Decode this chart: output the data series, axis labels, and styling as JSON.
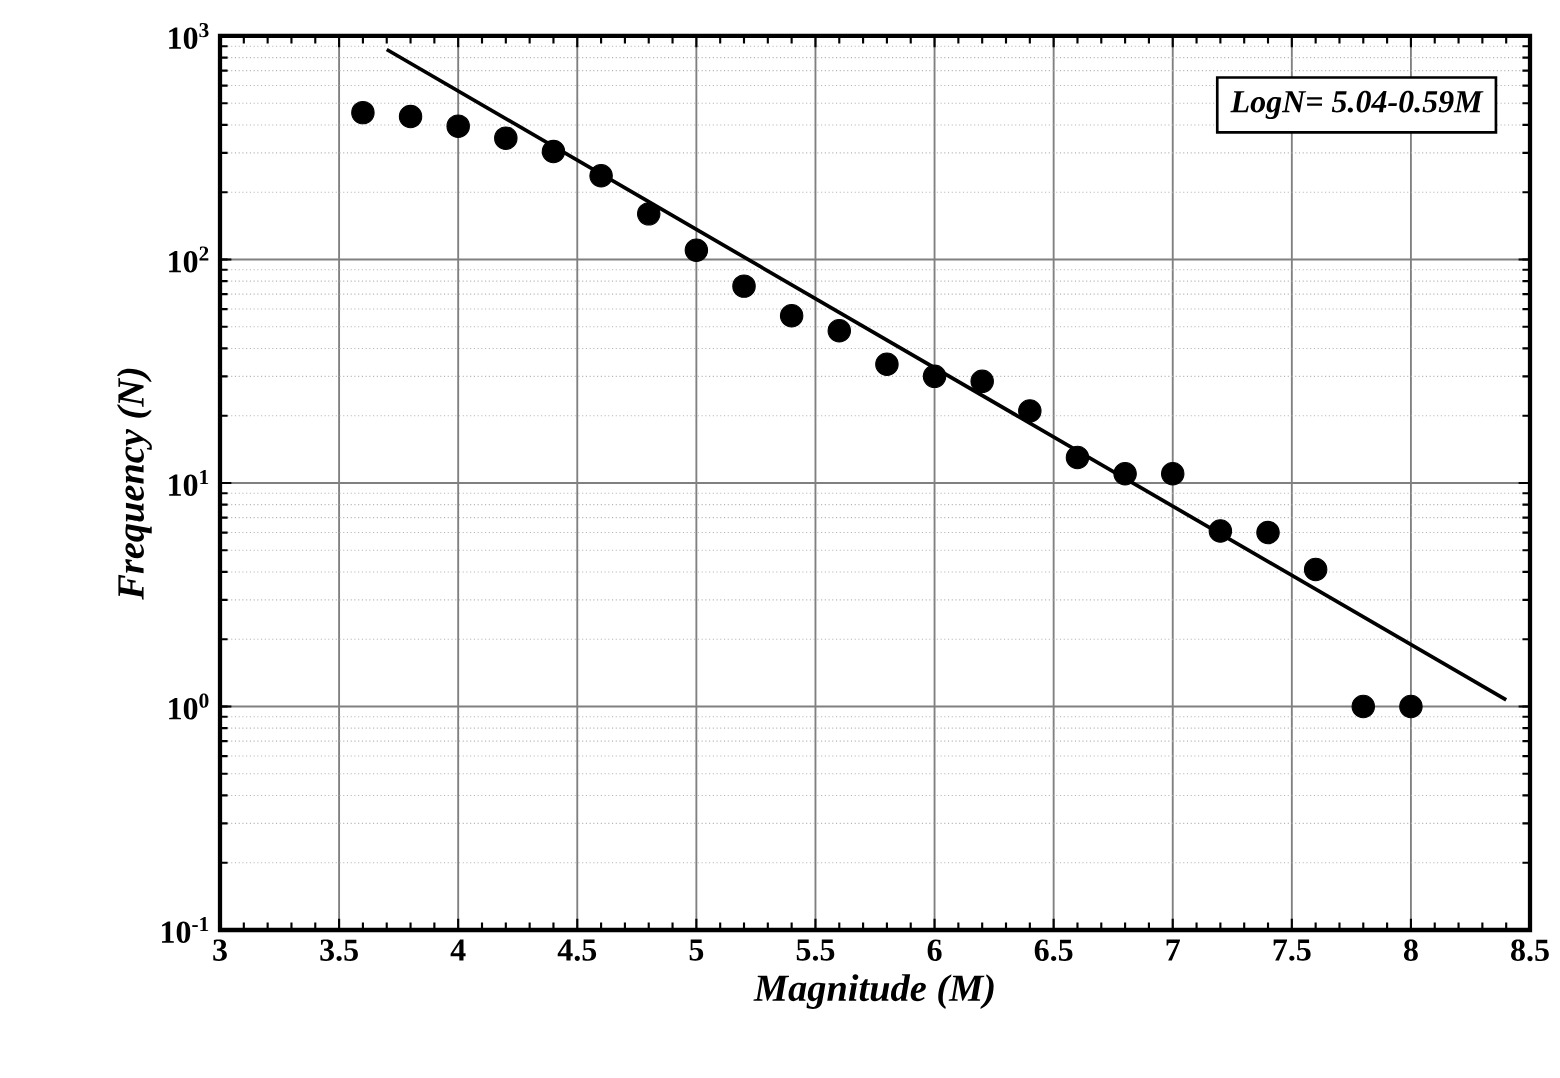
{
  "chart_data": {
    "type": "scatter",
    "xlabel": "Magnitude (M)",
    "ylabel": "Frequency (N)",
    "log": "y",
    "grid": true,
    "xlim": [
      3,
      8.5
    ],
    "xticks": [
      3,
      3.5,
      4,
      4.5,
      5,
      5.5,
      6,
      6.5,
      7,
      7.5,
      8,
      8.5
    ],
    "ylim": [
      0.1,
      1000
    ],
    "yticks": [
      {
        "value": 0.1,
        "label": "10$^{-1}$"
      },
      {
        "value": 1,
        "label": "10$^{0}$"
      },
      {
        "value": 10,
        "label": "10$^{1}$"
      },
      {
        "value": 100,
        "label": "10$^{2}$"
      },
      {
        "value": 1000,
        "label": "10$^{3}$"
      }
    ],
    "annotations": [
      "LogN= 5.04-0.59M"
    ],
    "series": [
      {
        "color": "#000000",
        "marker": "circle",
        "x": [
          3.6,
          3.8,
          4.0,
          4.2,
          4.4,
          4.6,
          4.8,
          5.0,
          5.2,
          5.4,
          5.6,
          5.8,
          6.0,
          6.2,
          6.4,
          6.6,
          6.8,
          7.0,
          7.2,
          7.4,
          7.6,
          7.8,
          8.0
        ],
        "values": [
          454,
          436,
          395,
          349,
          304,
          237,
          160,
          110,
          76,
          56,
          48,
          34,
          30,
          28.5,
          21,
          13,
          11,
          11,
          6.1,
          6,
          4.1,
          1,
          1
        ]
      },
      {
        "type": "line",
        "color": "#000000",
        "marker": "none",
        "line_style": "solid",
        "x": [
          3.7,
          8.4
        ],
        "values": [
          870,
          1.07
        ]
      }
    ]
  }
}
